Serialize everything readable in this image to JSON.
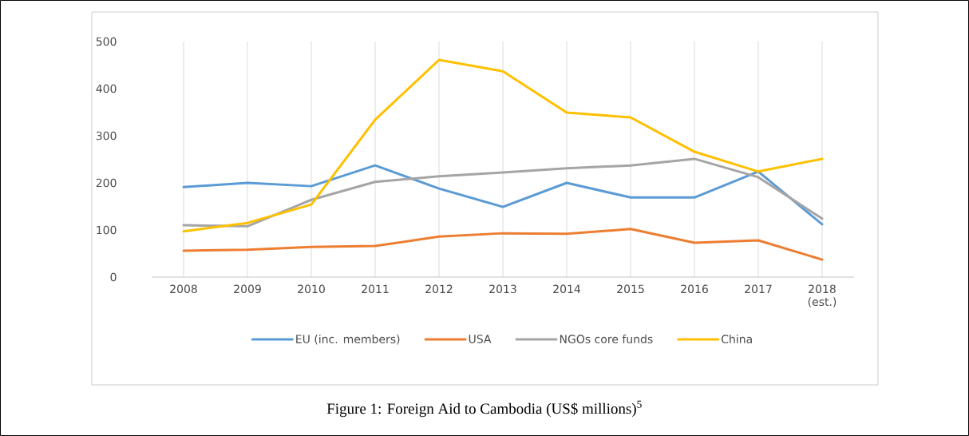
{
  "chart_data": {
    "type": "line",
    "title": "Figure 1: Foreign Aid to Cambodia (US$ millions)$^{5}$",
    "categories": [
      "2008",
      "2009",
      "2010",
      "2011",
      "2012",
      "2013",
      "2014",
      "2015",
      "2016",
      "2017",
      "2018 (est.)"
    ],
    "series": [
      {
        "name": "EU (inc. members)",
        "color": "#5b9bd5",
        "values": [
          191,
          200,
          193,
          237,
          188,
          149,
          200,
          169,
          169,
          224,
          112
        ]
      },
      {
        "name": "USA",
        "color": "#ed7d31",
        "values": [
          56,
          58,
          64,
          66,
          86,
          93,
          92,
          102,
          73,
          78,
          37
        ]
      },
      {
        "name": "NGOs core funds",
        "color": "#a5a5a5",
        "values": [
          110,
          108,
          164,
          202,
          214,
          222,
          231,
          237,
          251,
          212,
          124
        ]
      },
      {
        "name": "China",
        "color": "#ffc000",
        "values": [
          97,
          115,
          154,
          334,
          461,
          437,
          349,
          339,
          266,
          224,
          251
        ]
      }
    ],
    "ylim": [
      0,
      500
    ],
    "yticks": [
      0,
      100,
      200,
      300,
      400,
      500
    ],
    "grid": "x",
    "legend": "bottom",
    "marker": "none",
    "line_style": "solid"
  }
}
